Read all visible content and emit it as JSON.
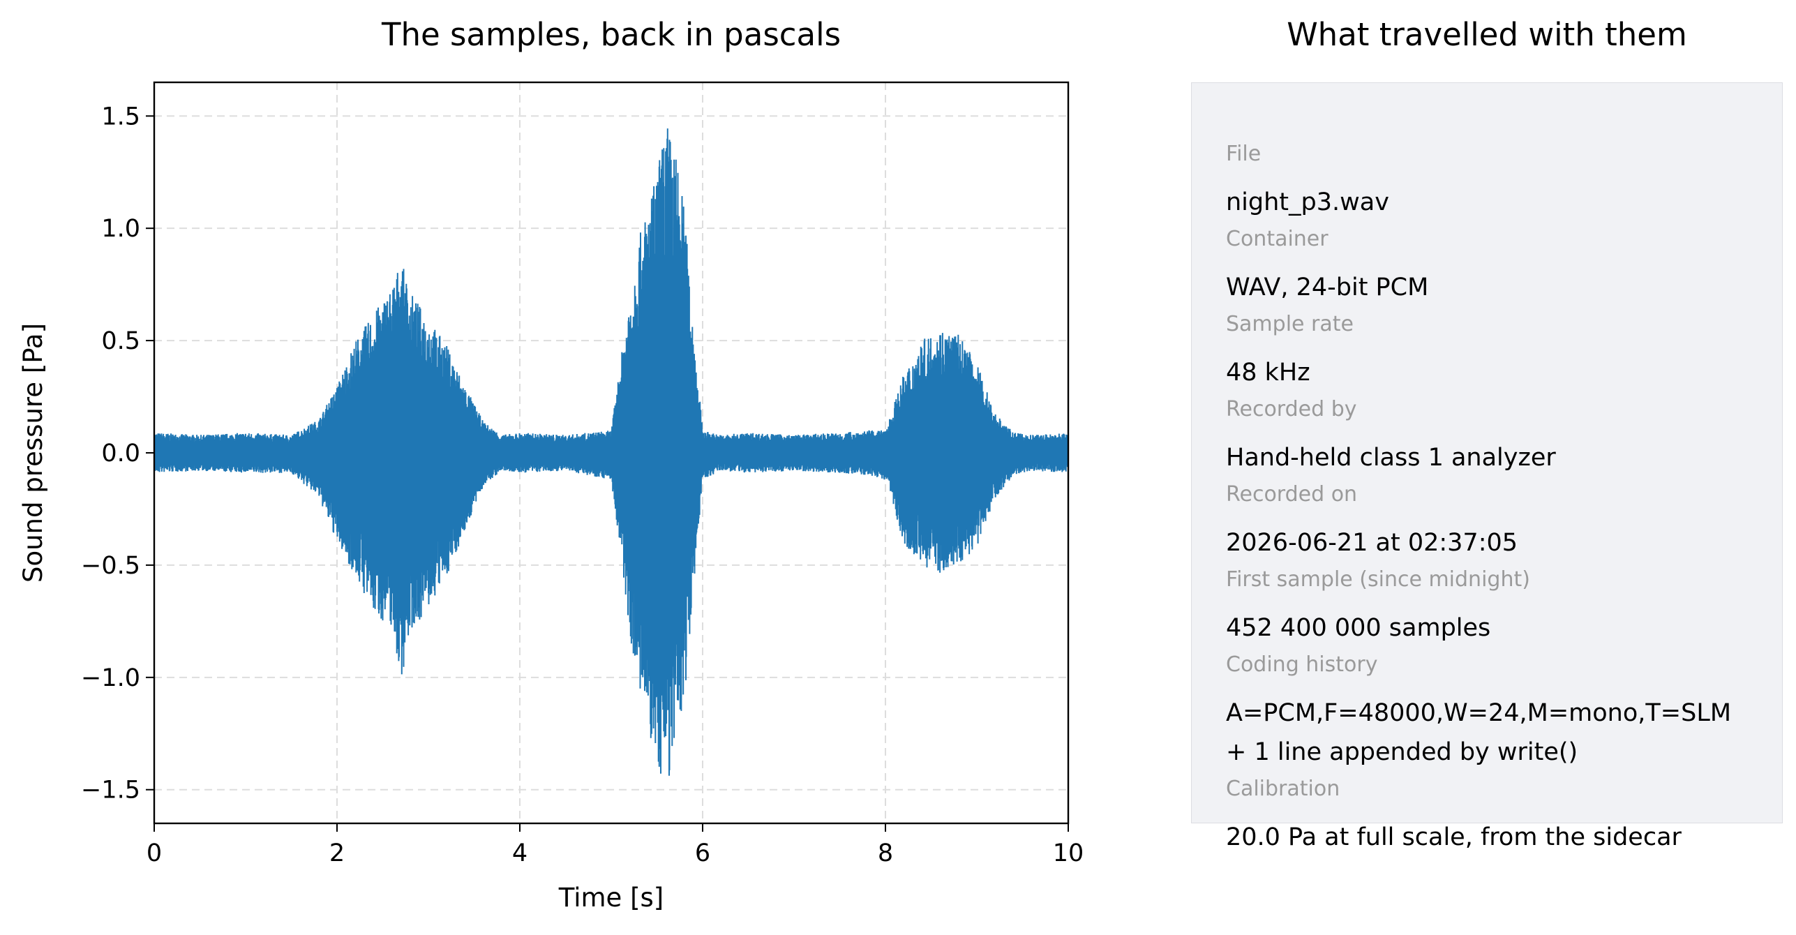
{
  "chart_data": {
    "type": "line",
    "title": "The samples, back in pascals",
    "xlabel": "Time [s]",
    "ylabel": "Sound pressure [Pa]",
    "xlim": [
      0,
      10
    ],
    "ylim": [
      -1.65,
      1.65
    ],
    "x_ticks": [
      0,
      2,
      4,
      6,
      8,
      10
    ],
    "x_tick_labels": [
      "0",
      "2",
      "4",
      "6",
      "8",
      "10"
    ],
    "y_ticks": [
      1.5,
      1.0,
      0.5,
      0.0,
      -0.5,
      -1.0,
      -1.5
    ],
    "y_tick_labels": [
      "1.5",
      "1.0",
      "0.5",
      "0.0",
      "−0.5",
      "−1.0",
      "−1.5"
    ],
    "grid": true,
    "line_color": "#1f77b4",
    "series": [
      {
        "x": [
          0.0,
          0.5,
          1.0,
          1.5,
          1.8,
          2.0,
          2.2,
          2.4,
          2.6,
          2.7,
          2.8,
          3.0,
          3.2,
          3.4,
          3.6,
          3.8,
          4.0,
          4.5,
          5.0,
          5.1,
          5.2,
          5.3,
          5.4,
          5.5,
          5.6,
          5.7,
          5.8,
          5.9,
          6.0,
          6.2,
          6.5,
          7.0,
          7.5,
          7.8,
          8.0,
          8.2,
          8.4,
          8.6,
          8.8,
          9.0,
          9.2,
          9.4,
          9.6,
          10.0
        ],
        "y_max": [
          0.09,
          0.08,
          0.09,
          0.08,
          0.15,
          0.3,
          0.5,
          0.62,
          0.75,
          0.86,
          0.72,
          0.6,
          0.48,
          0.3,
          0.14,
          0.08,
          0.09,
          0.08,
          0.1,
          0.4,
          0.7,
          0.95,
          1.1,
          1.25,
          1.49,
          1.35,
          1.1,
          0.55,
          0.1,
          0.08,
          0.09,
          0.08,
          0.09,
          0.1,
          0.1,
          0.35,
          0.5,
          0.56,
          0.53,
          0.4,
          0.18,
          0.09,
          0.08,
          0.09
        ],
        "y_min": [
          -0.09,
          -0.08,
          -0.09,
          -0.09,
          -0.2,
          -0.4,
          -0.55,
          -0.72,
          -0.78,
          -1.02,
          -0.8,
          -0.7,
          -0.55,
          -0.35,
          -0.15,
          -0.08,
          -0.09,
          -0.08,
          -0.12,
          -0.45,
          -0.8,
          -1.05,
          -1.25,
          -1.4,
          -1.5,
          -1.35,
          -1.1,
          -0.6,
          -0.12,
          -0.08,
          -0.09,
          -0.08,
          -0.09,
          -0.1,
          -0.12,
          -0.4,
          -0.5,
          -0.54,
          -0.5,
          -0.42,
          -0.2,
          -0.1,
          -0.08,
          -0.09
        ]
      }
    ]
  },
  "panel": {
    "title": "What travelled with them",
    "fields": [
      {
        "label": "File",
        "value": "night_p3.wav"
      },
      {
        "label": "Container",
        "value": "WAV, 24-bit PCM"
      },
      {
        "label": "Sample rate",
        "value": "48 kHz"
      },
      {
        "label": "Recorded by",
        "value": "Hand-held class 1 analyzer"
      },
      {
        "label": "Recorded on",
        "value": "2026-06-21 at 02:37:05"
      },
      {
        "label": "First sample (since midnight)",
        "value": "452 400 000 samples"
      },
      {
        "label": "Coding history",
        "value": "A=PCM,F=48000,W=24,M=mono,T=SLM",
        "extra": "+ 1 line appended by write()"
      },
      {
        "label": "Calibration",
        "value": "20.0 Pa at full scale, from the sidecar"
      }
    ]
  }
}
